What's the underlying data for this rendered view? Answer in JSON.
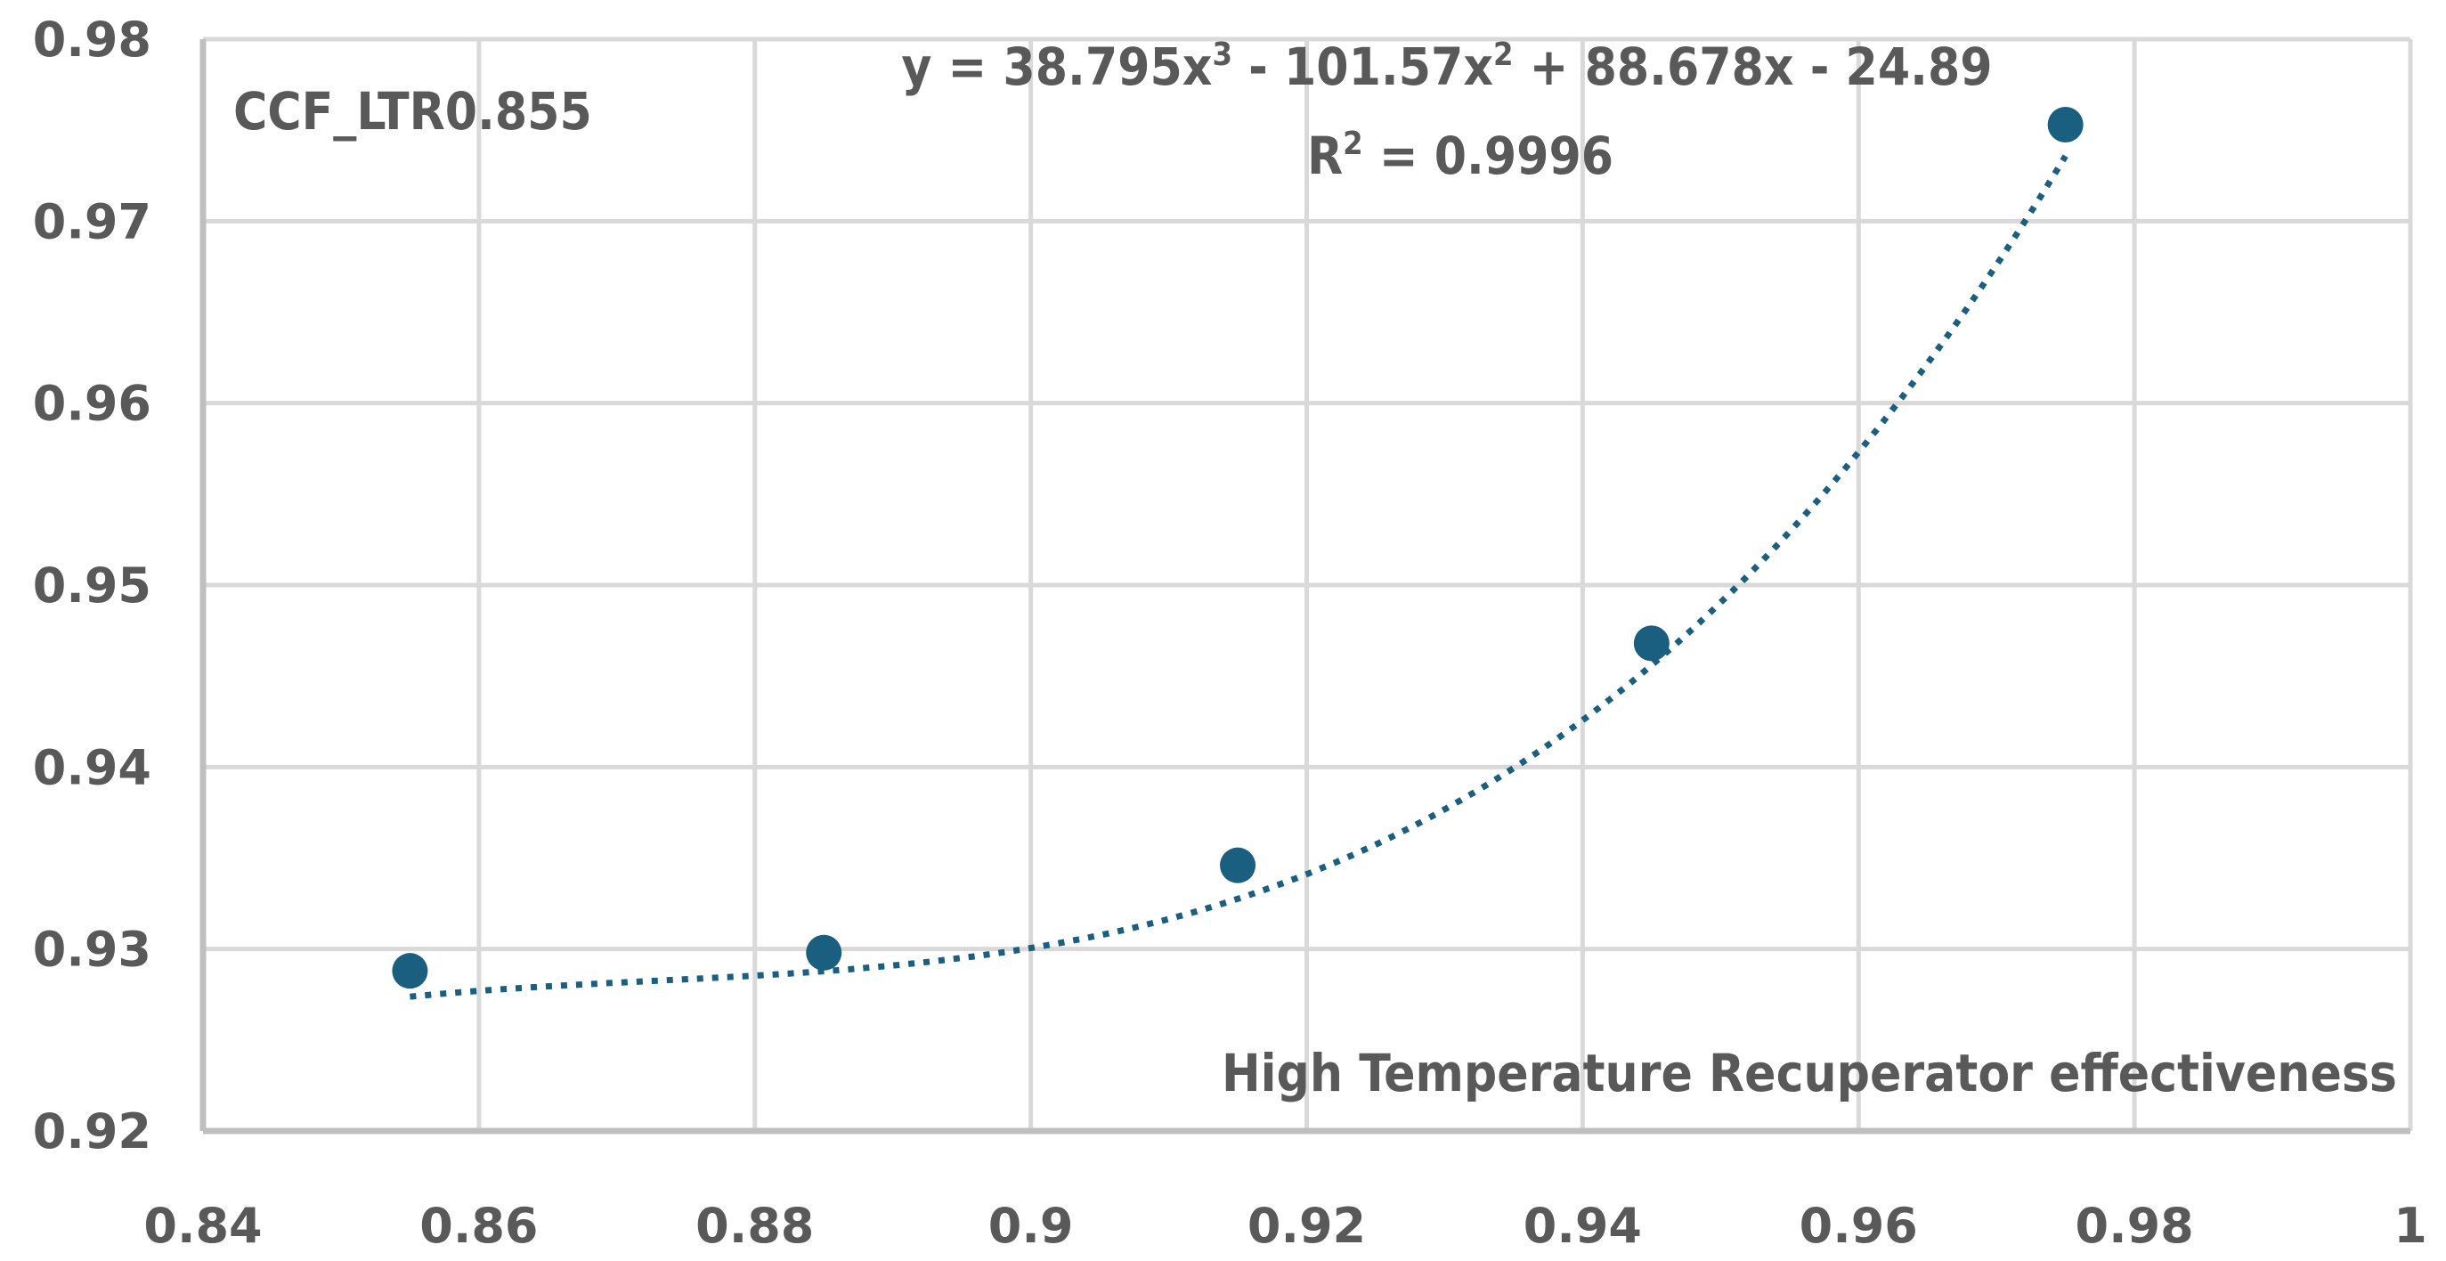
{
  "chart_data": {
    "type": "scatter",
    "title": "",
    "xlabel": "High Temperature Recuperator effectiveness",
    "ylabel": "",
    "series_label": "CCF_LTR0.855",
    "xlim": [
      0.84,
      1.0
    ],
    "ylim": [
      0.92,
      0.98
    ],
    "x_ticks": [
      "0.84",
      "0.86",
      "0.88",
      "0.9",
      "0.92",
      "0.94",
      "0.96",
      "0.98",
      "1"
    ],
    "y_ticks": [
      "0.92",
      "0.93",
      "0.94",
      "0.95",
      "0.96",
      "0.97",
      "0.98"
    ],
    "grid": true,
    "series": [
      {
        "name": "CCF_LTR0.855",
        "x": [
          0.855,
          0.885,
          0.915,
          0.945,
          0.975
        ],
        "y": [
          0.9288,
          0.9298,
          0.9346,
          0.9468,
          0.9753
        ],
        "color": "#1a5e80"
      }
    ],
    "trendline": {
      "type": "polynomial",
      "order": 3,
      "coefficients": [
        38.795,
        -101.57,
        88.678,
        -24.89
      ],
      "equation": "y = 38.795x³ - 101.57x² + 88.678x - 24.89",
      "r_squared_label": "R² = 0.9996",
      "style": "dotted",
      "color": "#1a5e80"
    },
    "annotations": {
      "label": "CCF_LTR0.855",
      "equation_parts": {
        "prefix": "y = 38.795x",
        "sup1": "3",
        "mid1": " - 101.57x",
        "sup2": "2",
        "suffix": " + 88.678x - 24.89"
      },
      "r2_parts": {
        "prefix": "R",
        "sup": "2",
        "suffix": " = 0.9996"
      }
    }
  },
  "colors": {
    "marker": "#1a5e80",
    "grid": "#d9d9d9",
    "axis": "#bfbfbf",
    "text": "#595959"
  }
}
